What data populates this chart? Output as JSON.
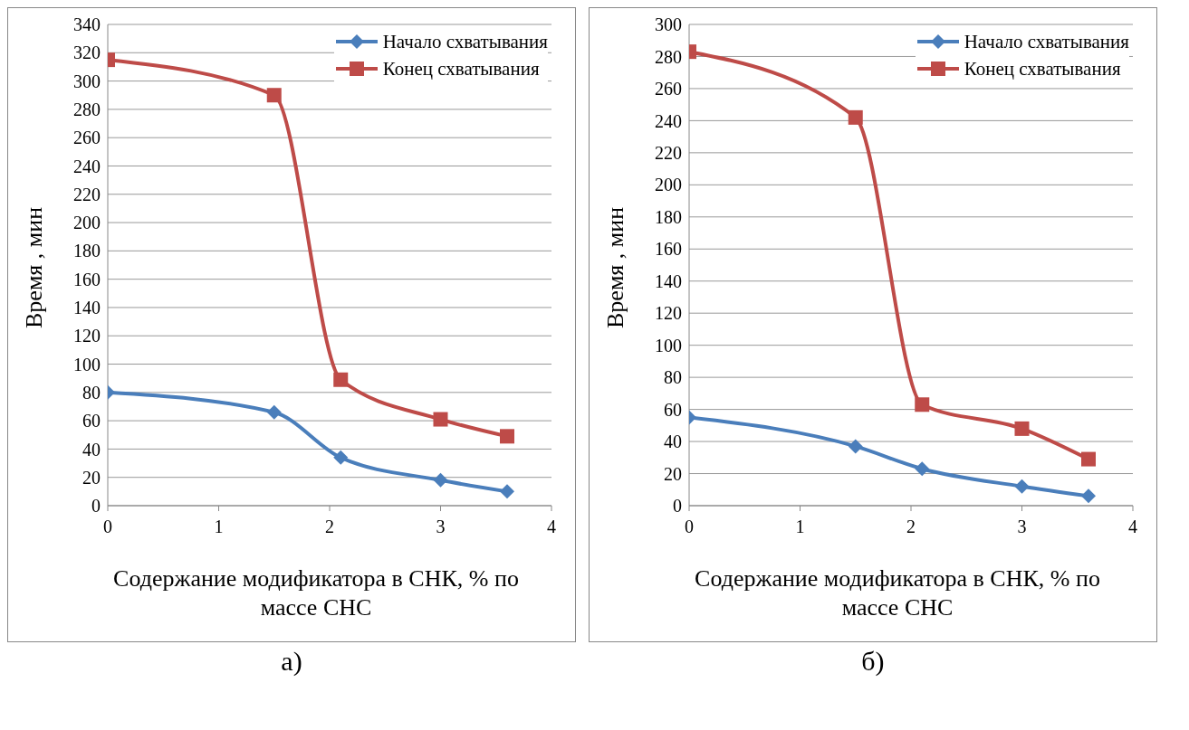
{
  "chart_data": [
    {
      "type": "line",
      "xlabel": "Содержание модификатора в СНК, % по массе СНС",
      "ylabel": "Время , мин",
      "x": [
        0,
        1.5,
        2.1,
        3,
        3.6
      ],
      "xlim": [
        0,
        4
      ],
      "xticks": [
        0,
        1,
        2,
        3,
        4
      ],
      "ylim": [
        0,
        340
      ],
      "yticks": [
        0,
        20,
        40,
        60,
        80,
        100,
        120,
        140,
        160,
        180,
        200,
        220,
        240,
        260,
        280,
        300,
        320,
        340
      ],
      "grid": "y",
      "legend": "top right",
      "line_style": "solid",
      "annotations": [
        "а)"
      ],
      "series": [
        {
          "name": "Начало схватывания",
          "color": "#4a7ebb",
          "marker": "diamond",
          "values": [
            80,
            66,
            34,
            18,
            10
          ]
        },
        {
          "name": "Конец схватывания",
          "color": "#be4b48",
          "marker": "square",
          "values": [
            315,
            290,
            89,
            61,
            49
          ]
        }
      ]
    },
    {
      "type": "line",
      "xlabel": "Содержание модификатора в СНК, % по массе СНС",
      "ylabel": "Время , мин",
      "x": [
        0,
        1.5,
        2.1,
        3,
        3.6
      ],
      "xlim": [
        0,
        4
      ],
      "xticks": [
        0,
        1,
        2,
        3,
        4
      ],
      "ylim": [
        0,
        300
      ],
      "yticks": [
        0,
        20,
        40,
        60,
        80,
        100,
        120,
        140,
        160,
        180,
        200,
        220,
        240,
        260,
        280,
        300
      ],
      "grid": "y",
      "legend": "top right",
      "line_style": "solid",
      "annotations": [
        "б)"
      ],
      "series": [
        {
          "name": "Начало схватывания",
          "color": "#4a7ebb",
          "marker": "diamond",
          "values": [
            55,
            37,
            23,
            12,
            6
          ]
        },
        {
          "name": "Конец схватывания",
          "color": "#be4b48",
          "marker": "square",
          "values": [
            283,
            242,
            63,
            48,
            29
          ]
        }
      ]
    }
  ]
}
